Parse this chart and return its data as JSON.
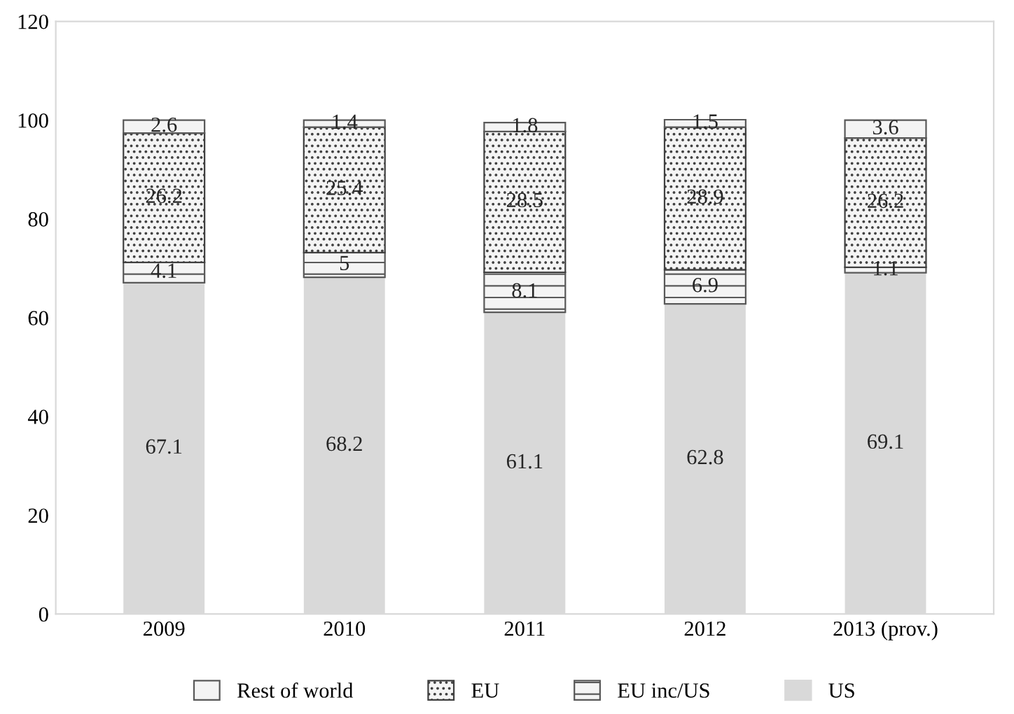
{
  "chart_data": {
    "type": "bar",
    "stacked": true,
    "categories": [
      "2009",
      "2010",
      "2011",
      "2012",
      "2013 (prov.)"
    ],
    "series": [
      {
        "name": "US",
        "color": "#d9d9d9",
        "values": [
          67.1,
          68.2,
          61.1,
          62.8,
          69.1
        ]
      },
      {
        "name": "EU inc/US",
        "color": "#595959",
        "values": [
          4.1,
          5,
          8.1,
          6.9,
          1.1
        ]
      },
      {
        "name": "EU",
        "color": "#404040",
        "values": [
          26.2,
          25.4,
          28.5,
          28.9,
          26.2
        ]
      },
      {
        "name": "Rest of world",
        "color": "#595959",
        "values": [
          2.6,
          1.4,
          1.8,
          1.5,
          3.6
        ]
      }
    ],
    "ylim": [
      0,
      120
    ],
    "yticks": [
      0,
      20,
      40,
      60,
      80,
      100,
      120
    ],
    "data_labels": true,
    "legend": "bottom",
    "grid": false
  }
}
